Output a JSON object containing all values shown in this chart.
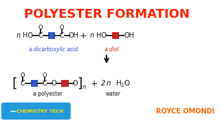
{
  "title": "POLYESTER FORMATION",
  "title_color": "#FF2200",
  "title_fontsize": 13,
  "bg_color": "#FFFFFF",
  "blue_color": "#3355CC",
  "red_color": "#CC2222",
  "black_color": "#111111",
  "line_color": "#111111",
  "label_blue": "#3355CC",
  "label_text1": "a dicarboxylic acid",
  "label_text2": "a diol",
  "label_text3": "a polyester",
  "label_text4": "water",
  "byline": "ROYCE OMONDI",
  "byline_color": "#FF6600",
  "channel_label": "CHEMISTRY TECH",
  "channel_bg": "#2299DD",
  "channel_text_color": "#FFDD00"
}
